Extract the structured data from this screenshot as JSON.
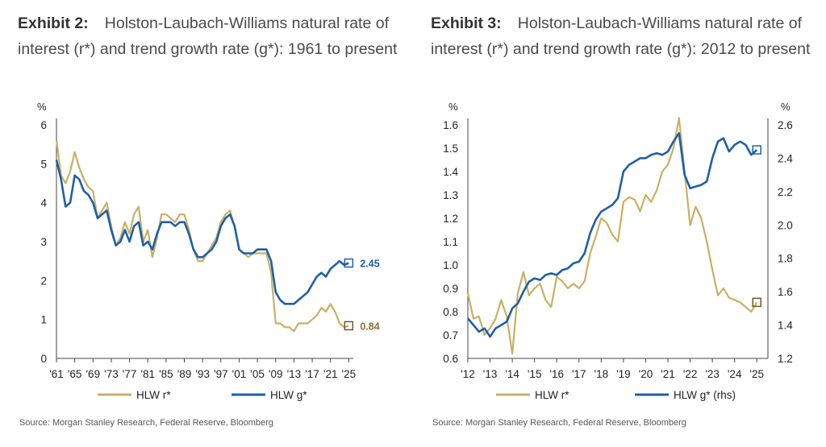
{
  "exhibit2": {
    "exhibit_label": "Exhibit 2:",
    "title": "Holston-Laubach-Williams natural rate of interest (r*) and trend growth rate (g*): 1961 to present",
    "source": "Source: Morgan Stanley Research, Federal Reserve, Bloomberg"
  },
  "exhibit3": {
    "exhibit_label": "Exhibit 3:",
    "title": "Holston-Laubach-Williams natural rate of interest (r*) and trend growth rate (g*): 2012 to present",
    "source": "Source: Morgan Stanley Research, Federal Reserve, Bloomberg"
  },
  "chart_data": [
    {
      "type": "line",
      "ylabel": "%",
      "ylim": [
        0,
        6
      ],
      "yticks": [
        "0",
        "1",
        "2",
        "3",
        "4",
        "5",
        "6"
      ],
      "xlim": [
        1961,
        2026
      ],
      "xticks": [
        {
          "label": "'61",
          "x": 1961
        },
        {
          "label": "'65",
          "x": 1965
        },
        {
          "label": "'69",
          "x": 1969
        },
        {
          "label": "'73",
          "x": 1973
        },
        {
          "label": "'77",
          "x": 1977
        },
        {
          "label": "'81",
          "x": 1981
        },
        {
          "label": "'85",
          "x": 1985
        },
        {
          "label": "'89",
          "x": 1989
        },
        {
          "label": "'93",
          "x": 1993
        },
        {
          "label": "'97",
          "x": 1997
        },
        {
          "label": "'01",
          "x": 2001
        },
        {
          "label": "'05",
          "x": 2005
        },
        {
          "label": "'09",
          "x": 2009
        },
        {
          "label": "'13",
          "x": 2013
        },
        {
          "label": "'17",
          "x": 2017
        },
        {
          "label": "'21",
          "x": 2021
        },
        {
          "label": "'25",
          "x": 2025
        }
      ],
      "legend_placement": "bottom",
      "grid": false,
      "series": [
        {
          "name": "HLW r*",
          "color": "#c8b064",
          "end_label": "0.84",
          "x": [
            1961,
            1962,
            1963,
            1964,
            1965,
            1966,
            1967,
            1968,
            1969,
            1970,
            1971,
            1972,
            1973,
            1974,
            1975,
            1976,
            1977,
            1978,
            1979,
            1980,
            1981,
            1982,
            1983,
            1984,
            1985,
            1986,
            1987,
            1988,
            1989,
            1990,
            1991,
            1992,
            1993,
            1994,
            1995,
            1996,
            1997,
            1998,
            1999,
            2000,
            2001,
            2002,
            2003,
            2004,
            2005,
            2006,
            2007,
            2008,
            2009,
            2010,
            2011,
            2012,
            2013,
            2014,
            2015,
            2016,
            2017,
            2018,
            2019,
            2020,
            2021,
            2022,
            2023,
            2024,
            2025
          ],
          "y": [
            5.6,
            4.7,
            4.5,
            4.8,
            5.3,
            4.9,
            4.6,
            4.4,
            4.3,
            3.6,
            3.8,
            4.0,
            3.4,
            2.9,
            3.1,
            3.5,
            3.2,
            3.7,
            3.9,
            3.0,
            3.3,
            2.6,
            3.1,
            3.7,
            3.7,
            3.6,
            3.5,
            3.7,
            3.7,
            3.3,
            2.8,
            2.5,
            2.5,
            2.7,
            2.9,
            3.1,
            3.5,
            3.7,
            3.8,
            3.4,
            2.8,
            2.7,
            2.6,
            2.7,
            2.7,
            2.7,
            2.7,
            2.2,
            0.9,
            0.9,
            0.8,
            0.8,
            0.7,
            0.9,
            0.9,
            0.9,
            1.0,
            1.1,
            1.3,
            1.2,
            1.4,
            1.2,
            0.9,
            0.8,
            0.84
          ]
        },
        {
          "name": "HLW g*",
          "color": "#1f5fa8",
          "end_label": "2.45",
          "x": [
            1961,
            1962,
            1963,
            1964,
            1965,
            1966,
            1967,
            1968,
            1969,
            1970,
            1971,
            1972,
            1973,
            1974,
            1975,
            1976,
            1977,
            1978,
            1979,
            1980,
            1981,
            1982,
            1983,
            1984,
            1985,
            1986,
            1987,
            1988,
            1989,
            1990,
            1991,
            1992,
            1993,
            1994,
            1995,
            1996,
            1997,
            1998,
            1999,
            2000,
            2001,
            2002,
            2003,
            2004,
            2005,
            2006,
            2007,
            2008,
            2009,
            2010,
            2011,
            2012,
            2013,
            2014,
            2015,
            2016,
            2017,
            2018,
            2019,
            2020,
            2021,
            2022,
            2023,
            2024,
            2025
          ],
          "y": [
            5.1,
            4.6,
            3.9,
            4.0,
            4.7,
            4.6,
            4.3,
            4.2,
            4.0,
            3.6,
            3.7,
            3.8,
            3.3,
            2.9,
            3.0,
            3.3,
            3.0,
            3.4,
            3.5,
            2.9,
            3.0,
            2.8,
            3.2,
            3.5,
            3.5,
            3.5,
            3.4,
            3.5,
            3.5,
            3.2,
            2.8,
            2.6,
            2.6,
            2.7,
            2.8,
            3.0,
            3.4,
            3.6,
            3.7,
            3.4,
            2.8,
            2.7,
            2.7,
            2.7,
            2.8,
            2.8,
            2.8,
            2.5,
            1.7,
            1.5,
            1.4,
            1.4,
            1.4,
            1.5,
            1.6,
            1.7,
            1.9,
            2.1,
            2.2,
            2.1,
            2.3,
            2.4,
            2.5,
            2.4,
            2.45
          ]
        }
      ]
    },
    {
      "type": "line",
      "ylabel": "%",
      "y2label": "%",
      "ylim": [
        0.6,
        1.6
      ],
      "y2lim": [
        1.2,
        2.6
      ],
      "yticks": [
        "0.6",
        "0.7",
        "0.8",
        "0.9",
        "1.0",
        "1.1",
        "1.2",
        "1.3",
        "1.4",
        "1.5",
        "1.6"
      ],
      "y2ticks": [
        "1.2",
        "1.4",
        "1.6",
        "1.8",
        "2.0",
        "2.2",
        "2.4",
        "2.6"
      ],
      "xlim": [
        2012,
        2025.5
      ],
      "xticks": [
        {
          "label": "'12",
          "x": 2012
        },
        {
          "label": "'13",
          "x": 2013
        },
        {
          "label": "'14",
          "x": 2014
        },
        {
          "label": "'15",
          "x": 2015
        },
        {
          "label": "'16",
          "x": 2016
        },
        {
          "label": "'17",
          "x": 2017
        },
        {
          "label": "'18",
          "x": 2018
        },
        {
          "label": "'19",
          "x": 2019
        },
        {
          "label": "'20",
          "x": 2020
        },
        {
          "label": "'21",
          "x": 2021
        },
        {
          "label": "'22",
          "x": 2022
        },
        {
          "label": "'23",
          "x": 2023
        },
        {
          "label": "'24",
          "x": 2024
        },
        {
          "label": "'25",
          "x": 2025
        }
      ],
      "legend_placement": "bottom",
      "grid": false,
      "series": [
        {
          "name": "HLW r*",
          "color": "#c8b064",
          "axis": "left",
          "x": [
            2012,
            2012.25,
            2012.5,
            2012.75,
            2013,
            2013.25,
            2013.5,
            2013.75,
            2014,
            2014.25,
            2014.5,
            2014.75,
            2015,
            2015.25,
            2015.5,
            2015.75,
            2016,
            2016.25,
            2016.5,
            2016.75,
            2017,
            2017.25,
            2017.5,
            2017.75,
            2018,
            2018.25,
            2018.5,
            2018.75,
            2019,
            2019.25,
            2019.5,
            2019.75,
            2020,
            2020.25,
            2020.5,
            2020.75,
            2021,
            2021.25,
            2021.5,
            2021.75,
            2022,
            2022.25,
            2022.5,
            2022.75,
            2023,
            2023.25,
            2023.5,
            2023.75,
            2024,
            2024.25,
            2024.5,
            2024.75,
            2025
          ],
          "y": [
            0.88,
            0.77,
            0.78,
            0.7,
            0.73,
            0.77,
            0.85,
            0.78,
            0.62,
            0.88,
            0.97,
            0.87,
            0.9,
            0.92,
            0.85,
            0.82,
            0.95,
            0.93,
            0.9,
            0.92,
            0.9,
            0.93,
            1.05,
            1.12,
            1.2,
            1.18,
            1.13,
            1.1,
            1.27,
            1.29,
            1.28,
            1.23,
            1.3,
            1.27,
            1.32,
            1.4,
            1.43,
            1.5,
            1.63,
            1.4,
            1.17,
            1.25,
            1.2,
            1.1,
            0.98,
            0.87,
            0.9,
            0.86,
            0.85,
            0.84,
            0.82,
            0.8,
            0.84
          ]
        },
        {
          "name": "HLW g* (rhs)",
          "color": "#1f5fa8",
          "axis": "right",
          "x": [
            2012,
            2012.25,
            2012.5,
            2012.75,
            2013,
            2013.25,
            2013.5,
            2013.75,
            2014,
            2014.25,
            2014.5,
            2014.75,
            2015,
            2015.25,
            2015.5,
            2015.75,
            2016,
            2016.25,
            2016.5,
            2016.75,
            2017,
            2017.25,
            2017.5,
            2017.75,
            2018,
            2018.25,
            2018.5,
            2018.75,
            2019,
            2019.25,
            2019.5,
            2019.75,
            2020,
            2020.25,
            2020.5,
            2020.75,
            2021,
            2021.25,
            2021.5,
            2021.75,
            2022,
            2022.25,
            2022.5,
            2022.75,
            2023,
            2023.25,
            2023.5,
            2023.75,
            2024,
            2024.25,
            2024.5,
            2024.75,
            2025
          ],
          "y": [
            1.44,
            1.4,
            1.36,
            1.38,
            1.33,
            1.38,
            1.4,
            1.42,
            1.5,
            1.53,
            1.6,
            1.66,
            1.68,
            1.67,
            1.7,
            1.71,
            1.7,
            1.73,
            1.74,
            1.77,
            1.78,
            1.83,
            1.95,
            2.03,
            2.08,
            2.1,
            2.12,
            2.16,
            2.32,
            2.36,
            2.38,
            2.4,
            2.4,
            2.42,
            2.43,
            2.42,
            2.44,
            2.5,
            2.55,
            2.3,
            2.22,
            2.23,
            2.24,
            2.26,
            2.4,
            2.5,
            2.52,
            2.44,
            2.48,
            2.5,
            2.48,
            2.42,
            2.45
          ]
        }
      ]
    }
  ]
}
